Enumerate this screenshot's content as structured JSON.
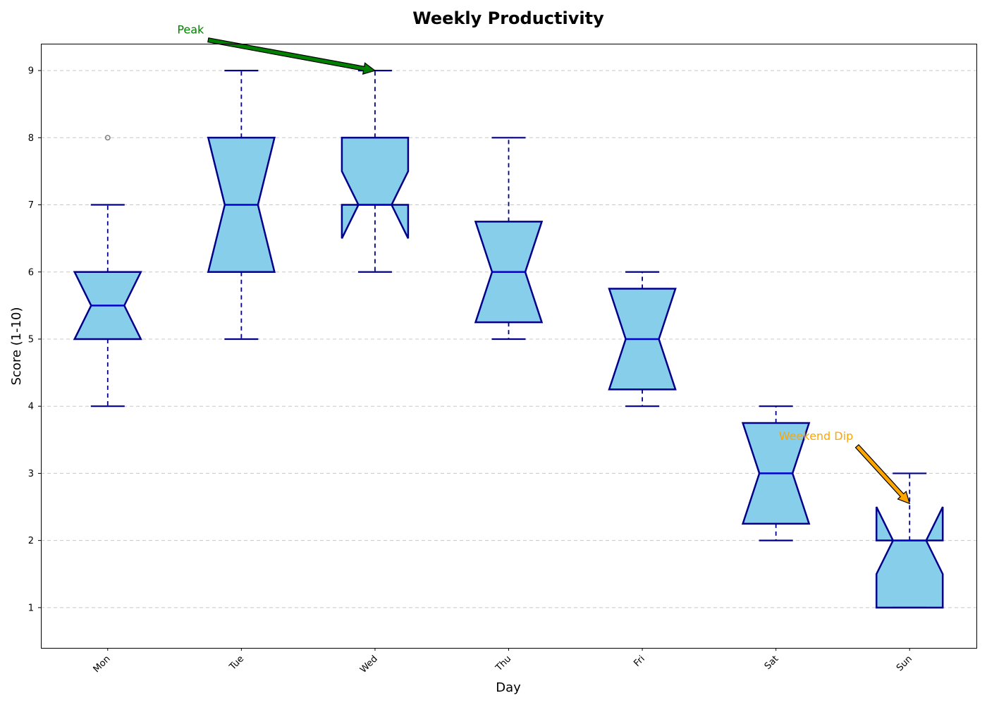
{
  "chart_data": {
    "type": "boxplot",
    "title": "Weekly Productivity",
    "xlabel": "Day",
    "ylabel": "Score (1-10)",
    "ylim": [
      0.4,
      9.4
    ],
    "yticks": [
      1,
      2,
      3,
      4,
      5,
      6,
      7,
      8,
      9
    ],
    "grid": "y-dashed",
    "notched": true,
    "categories": [
      "Mon",
      "Tue",
      "Wed",
      "Thu",
      "Fri",
      "Sat",
      "Sun"
    ],
    "boxes": [
      {
        "whislo": 4,
        "q1": 5,
        "med": 5.5,
        "q3": 6,
        "whishi": 7,
        "notch_lo": 5,
        "notch_hi": 6,
        "fliers": [
          8
        ]
      },
      {
        "whislo": 5,
        "q1": 6,
        "med": 7,
        "q3": 8,
        "whishi": 9,
        "notch_lo": 6,
        "notch_hi": 8,
        "fliers": []
      },
      {
        "whislo": 6,
        "q1": 7,
        "med": 7,
        "q3": 8,
        "whishi": 9,
        "notch_lo": 6.5,
        "notch_hi": 7.5,
        "fliers": []
      },
      {
        "whislo": 5,
        "q1": 5.25,
        "med": 6,
        "q3": 6.75,
        "whishi": 8,
        "notch_lo": 5.25,
        "notch_hi": 6.75,
        "fliers": []
      },
      {
        "whislo": 4,
        "q1": 4.25,
        "med": 5,
        "q3": 5.75,
        "whishi": 6,
        "notch_lo": 4.25,
        "notch_hi": 5.75,
        "fliers": []
      },
      {
        "whislo": 2,
        "q1": 2.25,
        "med": 3,
        "q3": 3.75,
        "whishi": 4,
        "notch_lo": 2.25,
        "notch_hi": 3.75,
        "fliers": []
      },
      {
        "whislo": 1,
        "q1": 1,
        "med": 2,
        "q3": 2,
        "whishi": 3,
        "notch_lo": 1.5,
        "notch_hi": 2.5,
        "fliers": []
      }
    ],
    "colors": {
      "box_fill": "#87ceeb",
      "box_edge": "#00008b",
      "median": "#0000cd",
      "flier": "#808080",
      "grid": "#c8c8c8"
    },
    "annotations": [
      {
        "text": "Peak",
        "category": "Wed",
        "point_y": 9,
        "text_y": 9.55,
        "text_offset": -1.38,
        "color": "#008000"
      },
      {
        "text": "Weekend Dip",
        "category": "Sun",
        "point_y": 2.55,
        "text_y": 3.5,
        "text_offset": -0.7,
        "color": "#ffa500"
      }
    ]
  }
}
